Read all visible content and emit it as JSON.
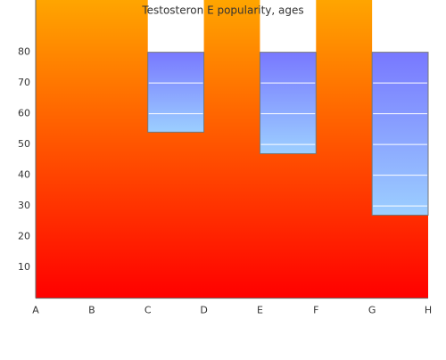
{
  "chart_data": {
    "type": "range_bar",
    "title": "Testosteron E popularity, ages",
    "categories": [
      "A",
      "B",
      "C",
      "D",
      "E",
      "F",
      "G",
      "H"
    ],
    "ranges": [
      {
        "x": [
          "C",
          "D"
        ],
        "low": 54,
        "high": 80
      },
      {
        "x": [
          "E",
          "F"
        ],
        "low": 47,
        "high": 80
      },
      {
        "x": [
          "G",
          "H"
        ],
        "low": 27,
        "high": 80
      }
    ],
    "ylim": [
      0,
      97
    ],
    "yticks": [
      10,
      20,
      30,
      40,
      50,
      60,
      70,
      80
    ],
    "background_colors": [
      "#ff0000",
      "#ffa500"
    ],
    "bar_colors": [
      "#7878ff",
      "#9ccfff"
    ],
    "grid": true
  }
}
